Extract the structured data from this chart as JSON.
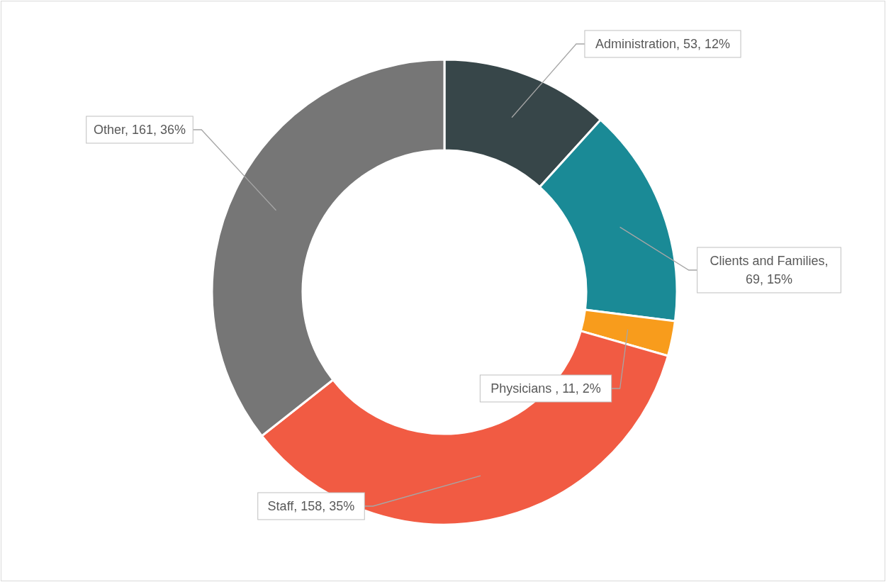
{
  "chart_data": {
    "type": "donut",
    "categories": [
      "Administration",
      "Clients and Families",
      "Physicians ",
      "Staff",
      "Other"
    ],
    "values": [
      53,
      69,
      11,
      158,
      161
    ],
    "colors": [
      "#374649",
      "#1a8a96",
      "#f89c1c",
      "#f15b43",
      "#767676"
    ],
    "value_labels": [
      ", 53, 12%",
      ", 69, 15%",
      ", 11, 2%",
      ", 158, 35%",
      ", 161, 36%"
    ]
  }
}
